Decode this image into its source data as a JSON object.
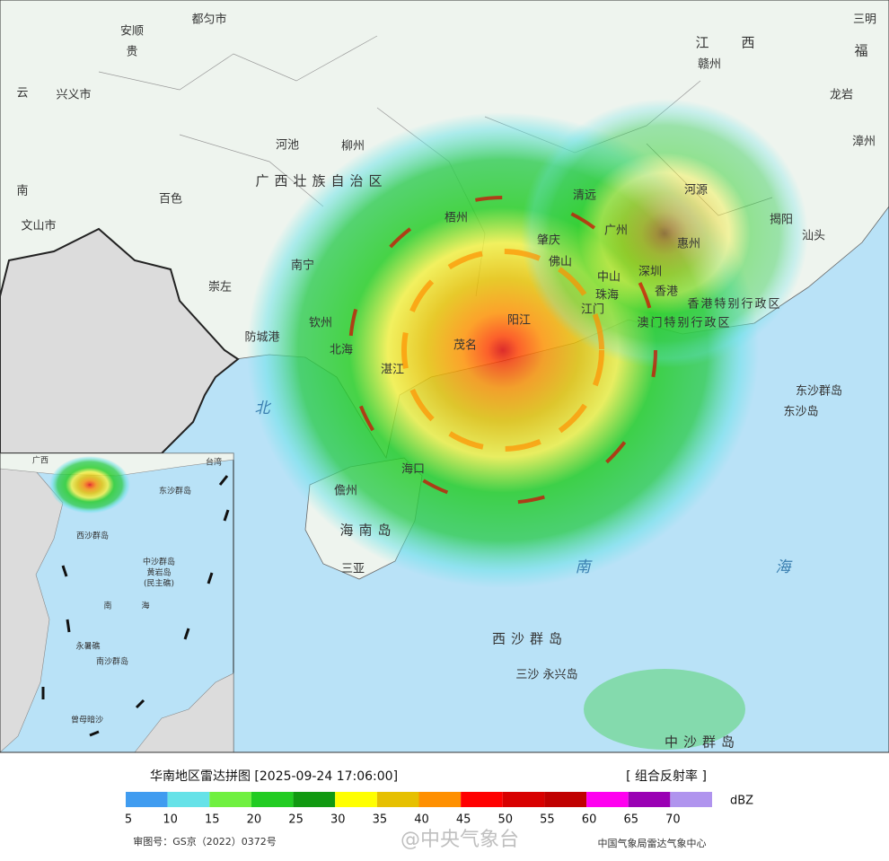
{
  "map": {
    "labels": [
      "安顺",
      "贵",
      "都匀市",
      "云",
      "兴义市",
      "河池",
      "柳州",
      "百色",
      "南",
      "文山市",
      "广西壮族自治区",
      "南宁",
      "崇左",
      "防城港",
      "钦州",
      "北海",
      "北",
      "湛江",
      "茂名",
      "阳江",
      "梧州",
      "肇庆",
      "广州",
      "佛山",
      "中山",
      "江门",
      "珠海",
      "深圳",
      "香港",
      "香港特别行政区",
      "澳门特别行政区",
      "清远",
      "河源",
      "惠州",
      "揭阳",
      "汕头",
      "东沙群岛",
      "东沙岛",
      "海口",
      "儋州",
      "海南岛",
      "三亚",
      "南",
      "海",
      "西沙群岛",
      "三沙 永兴岛",
      "中沙群岛",
      "赣州",
      "江",
      "西",
      "三明",
      "福",
      "龙岩",
      "漳州"
    ]
  },
  "inset": {
    "labels": [
      "广西",
      "台湾",
      "东沙群岛",
      "西沙群岛",
      "中沙群岛",
      "黄岩岛",
      "(民主礁)",
      "南",
      "海",
      "永暑礁",
      "南沙群岛",
      "曾母暗沙"
    ]
  },
  "legend": {
    "title": "华南地区雷达拼图 [2025-09-24 17:06:00]",
    "product": "[ 组合反射率 ]",
    "unit": "dBZ",
    "ticks": [
      5,
      10,
      15,
      20,
      25,
      30,
      35,
      40,
      45,
      50,
      55,
      60,
      65,
      70
    ],
    "colors": [
      "#409cf0",
      "#66e2e8",
      "#70f040",
      "#22cc22",
      "#119911",
      "#ffff00",
      "#e6c000",
      "#ff9000",
      "#ff0000",
      "#d80000",
      "#c00000",
      "#ff00f0",
      "#9a00b4",
      "#b094ee"
    ]
  },
  "footer": {
    "approval": "审图号：GS京（2022）0372号",
    "credit": "中国气象局雷达气象中心",
    "watermark": "@中央气象台"
  }
}
